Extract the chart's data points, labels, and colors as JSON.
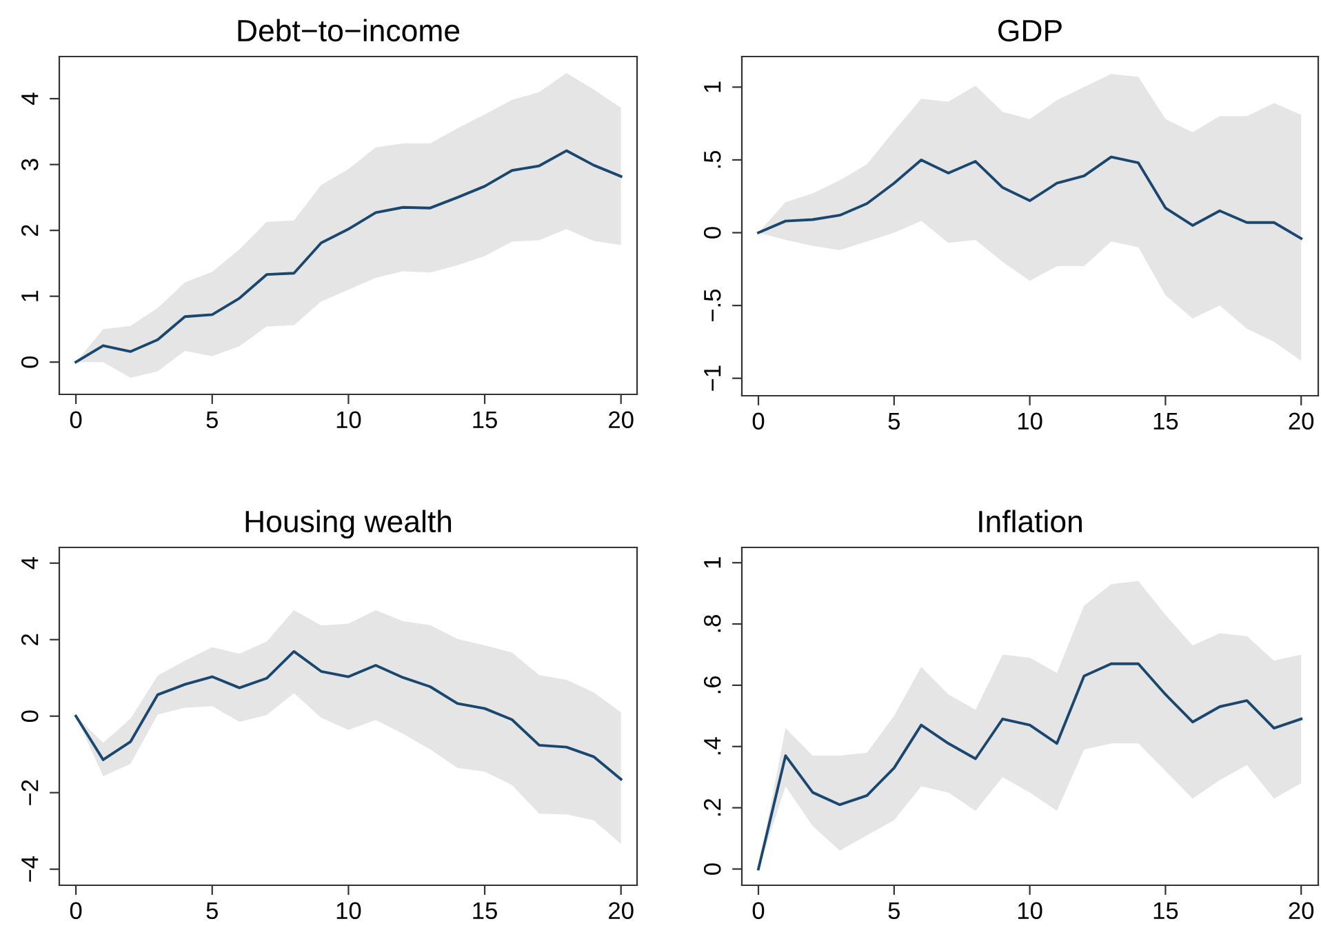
{
  "chart_data": [
    {
      "type": "line",
      "title": "Debt−to−income",
      "x": [
        0,
        1,
        2,
        3,
        4,
        5,
        6,
        7,
        8,
        9,
        10,
        11,
        12,
        13,
        14,
        15,
        16,
        17,
        18,
        19,
        20
      ],
      "xlim": [
        -0.61,
        20.59
      ],
      "xticks": [
        0,
        5,
        10,
        15,
        20
      ],
      "ylim": [
        -0.49,
        4.64
      ],
      "yticks": [
        0,
        1,
        2,
        3,
        4
      ],
      "grid": false,
      "series": [
        {
          "color": "#1a476f",
          "values": [
            0,
            0.25,
            0.16,
            0.34,
            0.69,
            0.72,
            0.97,
            1.33,
            1.35,
            1.81,
            2.02,
            2.27,
            2.35,
            2.34,
            2.5,
            2.67,
            2.91,
            2.98,
            3.21,
            2.99,
            2.82
          ],
          "upper": [
            0,
            0.5,
            0.55,
            0.82,
            1.21,
            1.37,
            1.71,
            2.13,
            2.15,
            2.69,
            2.93,
            3.26,
            3.32,
            3.32,
            3.55,
            3.76,
            3.98,
            4.1,
            4.39,
            4.14,
            3.86
          ],
          "lower": [
            0,
            0.0,
            -0.24,
            -0.14,
            0.17,
            0.09,
            0.24,
            0.54,
            0.56,
            0.92,
            1.1,
            1.28,
            1.38,
            1.36,
            1.47,
            1.61,
            1.83,
            1.85,
            2.02,
            1.84,
            1.78
          ]
        }
      ]
    },
    {
      "type": "line",
      "title": "GDP",
      "x": [
        0,
        1,
        2,
        3,
        4,
        5,
        6,
        7,
        8,
        9,
        10,
        11,
        12,
        13,
        14,
        15,
        16,
        17,
        18,
        19,
        20
      ],
      "xlim": [
        -0.61,
        20.63
      ],
      "xticks": [
        0,
        5,
        10,
        15,
        20
      ],
      "ylim": [
        -1.12,
        1.21
      ],
      "yticks": [
        {
          "value": -1,
          "label": "−1"
        },
        {
          "value": -0.5,
          "label": "−.5"
        },
        0,
        {
          "value": 0.5,
          "label": ".5"
        },
        1
      ],
      "grid": false,
      "series": [
        {
          "color": "#1a476f",
          "values": [
            0,
            0.08,
            0.09,
            0.12,
            0.2,
            0.34,
            0.5,
            0.41,
            0.49,
            0.31,
            0.22,
            0.34,
            0.39,
            0.52,
            0.48,
            0.17,
            0.05,
            0.15,
            0.07,
            0.07,
            -0.04
          ],
          "upper": [
            0,
            0.21,
            0.27,
            0.36,
            0.47,
            0.7,
            0.92,
            0.9,
            1.01,
            0.83,
            0.78,
            0.91,
            1.0,
            1.09,
            1.07,
            0.78,
            0.69,
            0.8,
            0.8,
            0.89,
            0.81
          ],
          "lower": [
            0,
            -0.05,
            -0.09,
            -0.12,
            -0.06,
            0.0,
            0.08,
            -0.07,
            -0.05,
            -0.2,
            -0.33,
            -0.23,
            -0.23,
            -0.06,
            -0.1,
            -0.43,
            -0.59,
            -0.5,
            -0.66,
            -0.75,
            -0.88
          ]
        }
      ]
    },
    {
      "type": "line",
      "title": "Housing wealth",
      "x": [
        0,
        1,
        2,
        3,
        4,
        5,
        6,
        7,
        8,
        9,
        10,
        11,
        12,
        13,
        14,
        15,
        16,
        17,
        18,
        19,
        20
      ],
      "xlim": [
        -0.61,
        20.59
      ],
      "xticks": [
        0,
        5,
        10,
        15,
        20
      ],
      "ylim": [
        -4.42,
        4.41
      ],
      "yticks": [
        {
          "value": -4,
          "label": "−4"
        },
        {
          "value": -2,
          "label": "−2"
        },
        0,
        2,
        4
      ],
      "grid": false,
      "series": [
        {
          "color": "#1a476f",
          "values": [
            0,
            -1.14,
            -0.67,
            0.56,
            0.83,
            1.03,
            0.74,
            0.99,
            1.69,
            1.17,
            1.03,
            1.33,
            1.01,
            0.77,
            0.33,
            0.2,
            -0.09,
            -0.76,
            -0.81,
            -1.06,
            -1.65
          ],
          "upper": [
            0,
            -0.7,
            -0.07,
            1.06,
            1.45,
            1.8,
            1.63,
            1.95,
            2.77,
            2.37,
            2.42,
            2.77,
            2.48,
            2.38,
            2.02,
            1.85,
            1.66,
            1.07,
            0.95,
            0.62,
            0.1
          ],
          "lower": [
            0,
            -1.57,
            -1.25,
            0.04,
            0.22,
            0.26,
            -0.15,
            0.03,
            0.6,
            -0.04,
            -0.36,
            -0.1,
            -0.46,
            -0.87,
            -1.35,
            -1.45,
            -1.8,
            -2.55,
            -2.57,
            -2.72,
            -3.34
          ]
        }
      ]
    },
    {
      "type": "line",
      "title": "Inflation",
      "x": [
        0,
        1,
        2,
        3,
        4,
        5,
        6,
        7,
        8,
        9,
        10,
        11,
        12,
        13,
        14,
        15,
        16,
        17,
        18,
        19,
        20
      ],
      "xlim": [
        -0.61,
        20.63
      ],
      "xticks": [
        0,
        5,
        10,
        15,
        20
      ],
      "ylim": [
        -0.053,
        1.05
      ],
      "yticks": [
        0,
        {
          "value": 0.2,
          "label": ".2"
        },
        {
          "value": 0.4,
          "label": ".4"
        },
        {
          "value": 0.6,
          "label": ".6"
        },
        {
          "value": 0.8,
          "label": ".8"
        },
        1
      ],
      "grid": false,
      "series": [
        {
          "color": "#1a476f",
          "values": [
            0,
            0.37,
            0.25,
            0.21,
            0.24,
            0.33,
            0.47,
            0.41,
            0.36,
            0.49,
            0.47,
            0.41,
            0.63,
            0.67,
            0.67,
            0.57,
            0.48,
            0.53,
            0.55,
            0.46,
            0.49
          ],
          "upper": [
            0,
            0.46,
            0.37,
            0.37,
            0.38,
            0.5,
            0.66,
            0.57,
            0.52,
            0.7,
            0.69,
            0.64,
            0.86,
            0.93,
            0.94,
            0.83,
            0.73,
            0.77,
            0.76,
            0.68,
            0.7
          ],
          "lower": [
            0,
            0.27,
            0.14,
            0.06,
            0.11,
            0.16,
            0.27,
            0.25,
            0.19,
            0.3,
            0.25,
            0.19,
            0.39,
            0.41,
            0.41,
            0.32,
            0.23,
            0.29,
            0.34,
            0.23,
            0.28
          ]
        }
      ]
    }
  ]
}
